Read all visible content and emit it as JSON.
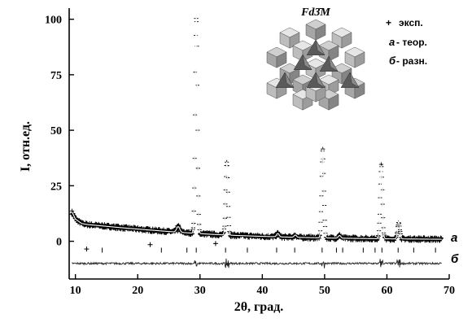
{
  "chart_data": {
    "type": "line",
    "xlabel": "2θ, град.",
    "ylabel": "I, отн.ед.",
    "xlim": [
      9,
      70
    ],
    "ylim": [
      -17,
      105
    ],
    "x_ticks": [
      10,
      20,
      30,
      40,
      50,
      60,
      70
    ],
    "y_ticks": [
      0,
      25,
      50,
      75,
      100
    ],
    "grid": false,
    "legend_position": "top-right",
    "legend": [
      {
        "marker": "+",
        "key": "",
        "text": "эксп."
      },
      {
        "marker": "",
        "key": "а",
        "text": "- теор."
      },
      {
        "marker": "",
        "key": "б",
        "text": "- разн."
      }
    ],
    "curve_labels": {
      "theory": "а",
      "difference": "б"
    },
    "inset": {
      "phase_label": "Fd3̄M",
      "description_icon": "crystal-structure-polyhedra"
    },
    "colors": {
      "points": "#000000",
      "theory": "#ffffff",
      "difference": "#222222",
      "axes": "#000000"
    },
    "background": {
      "x": [
        9.5,
        10,
        11,
        12,
        14,
        17,
        20,
        24,
        28,
        32,
        36,
        40,
        45,
        50,
        55,
        60,
        65,
        69
      ],
      "y": [
        13,
        10,
        8,
        7.5,
        7,
        6.2,
        5.5,
        4.6,
        3.8,
        3.1,
        2.6,
        2.2,
        1.8,
        1.5,
        1.3,
        1.1,
        1.0,
        0.9
      ]
    },
    "peaks": [
      {
        "x": 26.5,
        "height": 2.5,
        "width": 0.25
      },
      {
        "x": 29.4,
        "height": 98,
        "width": 0.18
      },
      {
        "x": 34.3,
        "height": 33,
        "width": 0.18
      },
      {
        "x": 42.5,
        "height": 1.5,
        "width": 0.2
      },
      {
        "x": 45.3,
        "height": 1.0,
        "width": 0.2
      },
      {
        "x": 49.7,
        "height": 40,
        "width": 0.18
      },
      {
        "x": 52.4,
        "height": 1.2,
        "width": 0.2
      },
      {
        "x": 59.1,
        "height": 33,
        "width": 0.18
      },
      {
        "x": 61.9,
        "height": 8,
        "width": 0.18
      }
    ],
    "bragg_positions": [
      14.3,
      23.8,
      27.9,
      29.4,
      34.1,
      37.6,
      42.3,
      45.2,
      49.6,
      51.9,
      52.9,
      56.2,
      58.1,
      59.2,
      61.8,
      64.3,
      67.8
    ],
    "bragg_level": -4,
    "difference_level": -10
  }
}
